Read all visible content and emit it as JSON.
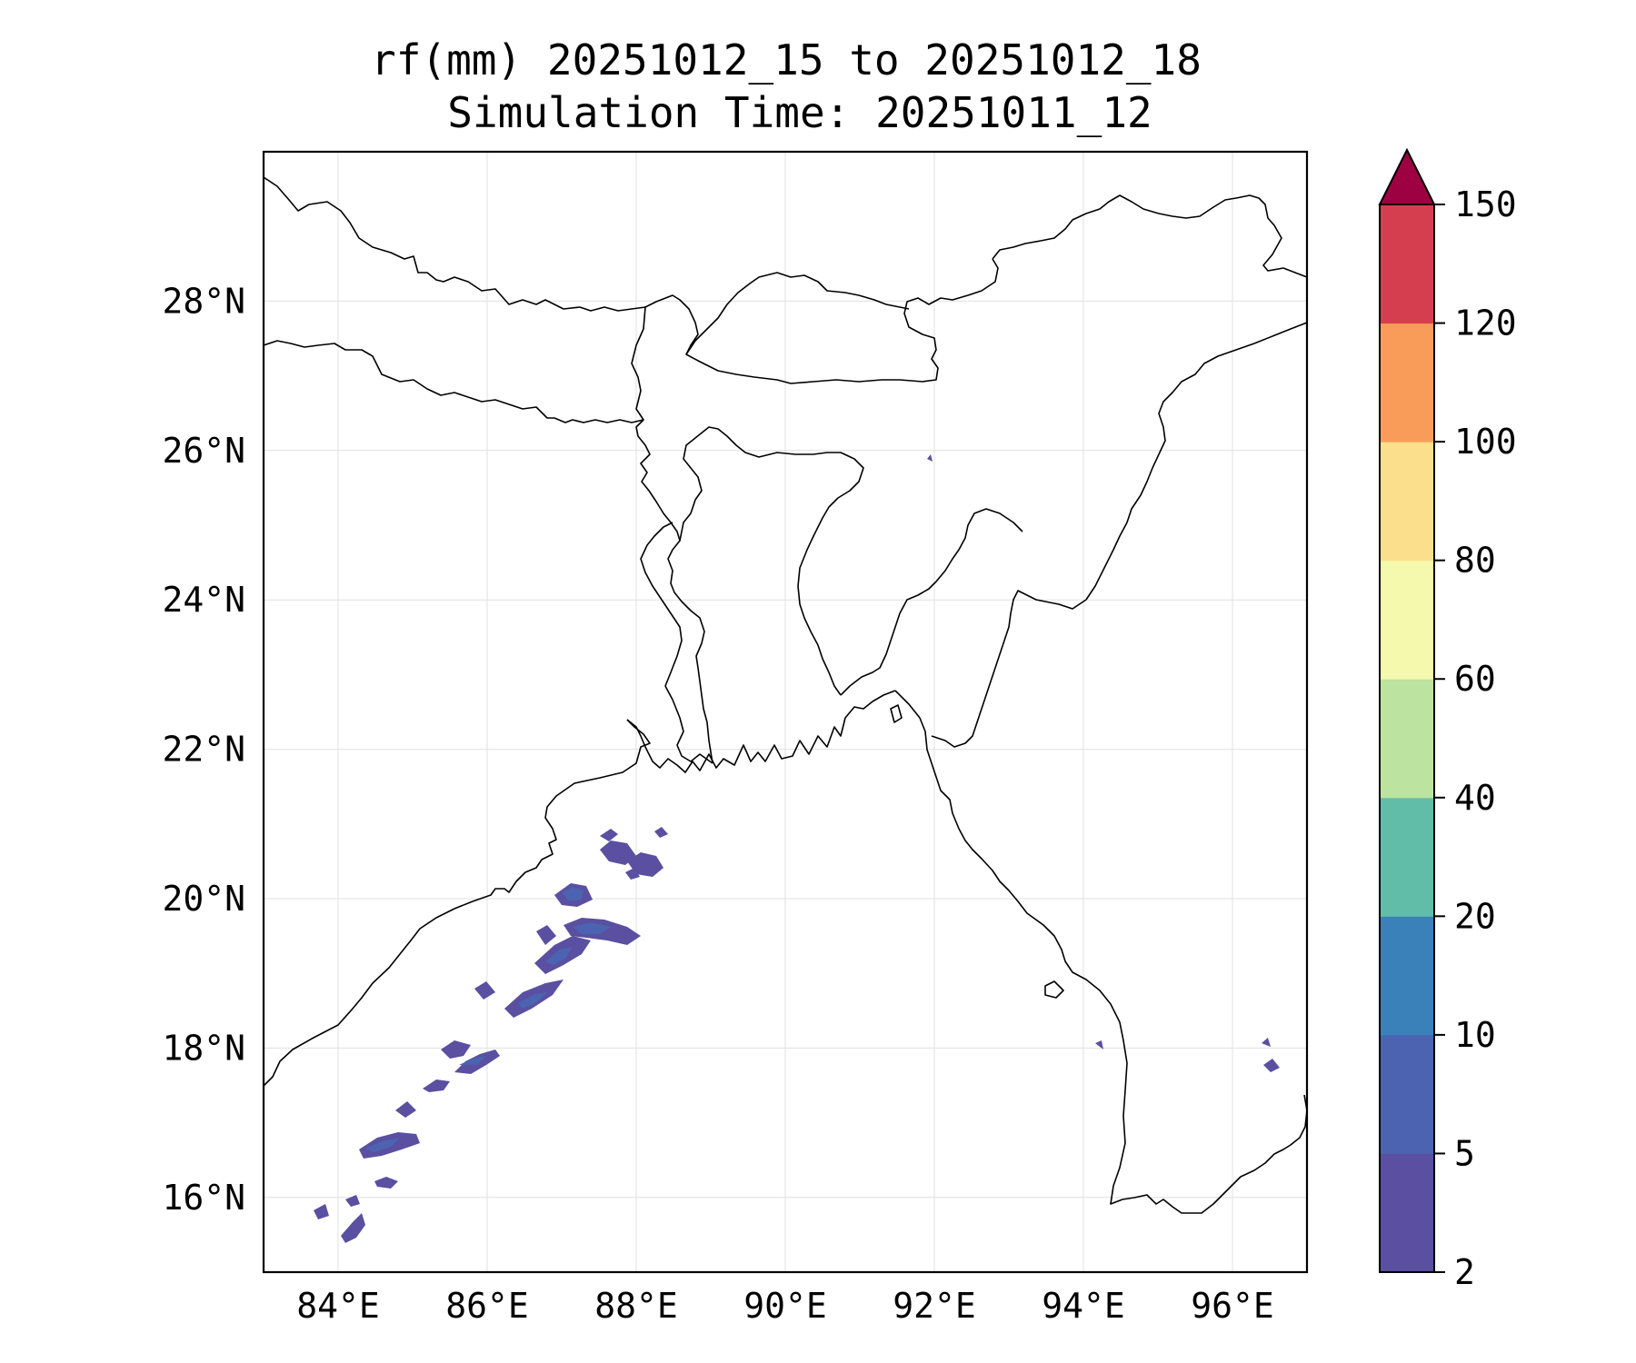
{
  "title": {
    "line1": "rf(mm) 20251012_15 to 20251012_18",
    "line2": "Simulation Time: 20251011_12"
  },
  "map": {
    "extent": {
      "lon": [
        83.0,
        97.0
      ],
      "lat": [
        15.0,
        30.0
      ]
    },
    "lon_ticks": [
      {
        "value": 84,
        "label": "84°E"
      },
      {
        "value": 86,
        "label": "86°E"
      },
      {
        "value": 88,
        "label": "88°E"
      },
      {
        "value": 90,
        "label": "90°E"
      },
      {
        "value": 92,
        "label": "92°E"
      },
      {
        "value": 94,
        "label": "94°E"
      },
      {
        "value": 96,
        "label": "96°E"
      }
    ],
    "lat_ticks": [
      {
        "value": 16,
        "label": "16°N"
      },
      {
        "value": 18,
        "label": "18°N"
      },
      {
        "value": 20,
        "label": "20°N"
      },
      {
        "value": 22,
        "label": "22°N"
      },
      {
        "value": 24,
        "label": "24°N"
      },
      {
        "value": 26,
        "label": "26°N"
      },
      {
        "value": 28,
        "label": "28°N"
      }
    ],
    "gridlines": true
  },
  "colorbar": {
    "levels": [
      {
        "value": 2,
        "label": "2"
      },
      {
        "value": 5,
        "label": "5"
      },
      {
        "value": 10,
        "label": "10"
      },
      {
        "value": 20,
        "label": "20"
      },
      {
        "value": 40,
        "label": "40"
      },
      {
        "value": 60,
        "label": "60"
      },
      {
        "value": 80,
        "label": "80"
      },
      {
        "value": 100,
        "label": "100"
      },
      {
        "value": 120,
        "label": "120"
      },
      {
        "value": 150,
        "label": "150"
      }
    ],
    "colors": [
      "#5a4fa0",
      "#4b63b0",
      "#3a80b9",
      "#62bda8",
      "#bde3a0",
      "#f4f9ad",
      "#fcdf8c",
      "#f99c5a",
      "#d53e4f"
    ],
    "extend_color": "#9e0142",
    "extend": "max"
  }
}
